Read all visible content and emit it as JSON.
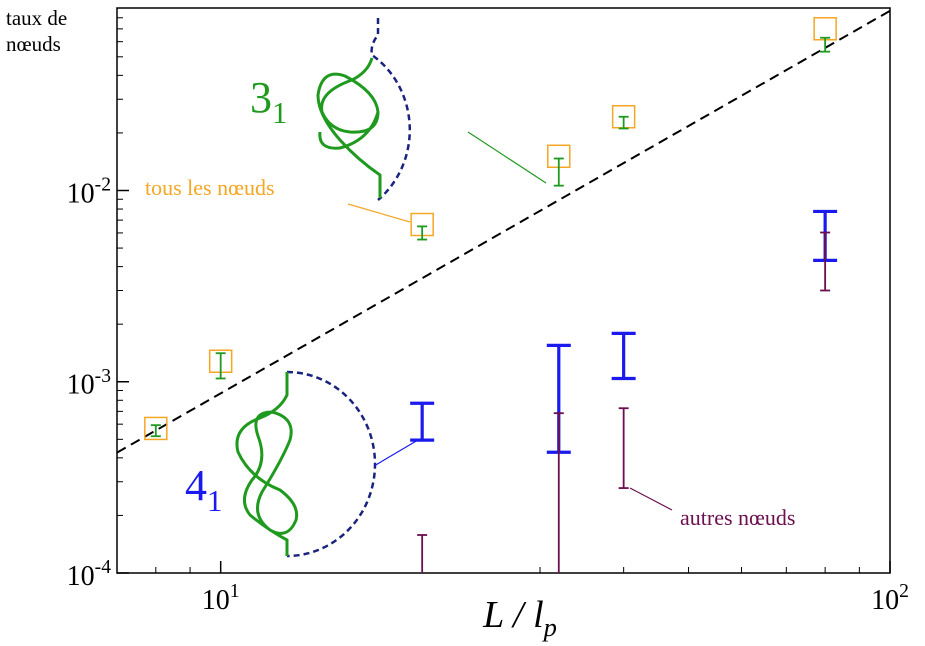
{
  "chart_data": {
    "type": "scatter",
    "log_x": true,
    "log_y": true,
    "y_label": [
      "taux de",
      "nœuds"
    ],
    "x_label": "L / l_p",
    "xlim": [
      7,
      100
    ],
    "ylim": [
      0.0001,
      0.09
    ],
    "xticks": [
      {
        "value": 10,
        "label": "10^1"
      },
      {
        "value": 100,
        "label": "10^2"
      }
    ],
    "yticks": [
      {
        "value": 0.0001,
        "label": "10^-4"
      },
      {
        "value": 0.001,
        "label": "10^-3"
      },
      {
        "value": 0.01,
        "label": "10^-2"
      }
    ],
    "x": [
      8,
      10,
      20,
      32,
      40,
      80
    ],
    "series": [
      {
        "name": "tous les nœuds",
        "kind": "square",
        "color": "#f5a623",
        "values": [
          0.00057,
          0.00128,
          0.00664,
          0.0151,
          0.0243,
          0.0701
        ]
      },
      {
        "name": "3_1",
        "kind": "errorbar",
        "color": "#1f9a1f",
        "low": [
          0.000519,
          0.00104,
          0.00554,
          0.0106,
          0.0211,
          0.0532
        ],
        "high": [
          0.000593,
          0.00141,
          0.00649,
          0.0147,
          0.0243,
          0.0629
        ]
      },
      {
        "name": "4_1",
        "kind": "errorbar",
        "color": "#1a1aee",
        "low": [
          null,
          null,
          0.000495,
          0.000428,
          0.00104,
          0.00431
        ],
        "high": [
          null,
          null,
          0.000772,
          0.00155,
          0.00179,
          0.00777
        ]
      },
      {
        "name": "autres nœuds",
        "kind": "errorbar",
        "color": "#6b0f4f",
        "low": [
          null,
          null,
          null,
          null,
          0.000278,
          0.003
        ],
        "high": [
          null,
          null,
          0.000158,
          0.000685,
          0.000727,
          0.00603
        ]
      }
    ],
    "fit_line": {
      "x": [
        7,
        100
      ],
      "values": [
        0.000426,
        0.087
      ],
      "color": "#000000"
    }
  }
}
